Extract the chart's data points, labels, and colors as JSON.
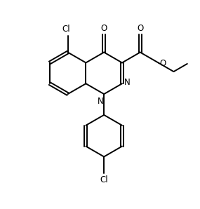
{
  "background_color": "#ffffff",
  "line_color": "#000000",
  "line_width": 1.4,
  "font_size": 8.5,
  "figsize": [
    2.85,
    2.98
  ],
  "dpi": 100,
  "xlim": [
    0,
    10
  ],
  "ylim": [
    0,
    10.45
  ]
}
